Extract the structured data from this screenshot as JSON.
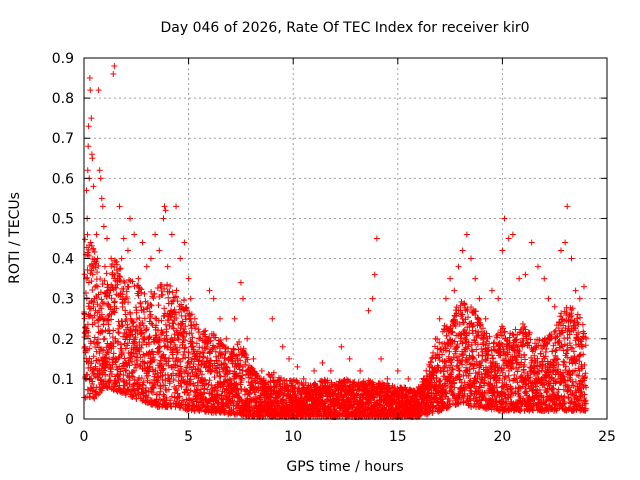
{
  "chart_data": {
    "type": "scatter",
    "title": "Day 046 of 2026, Rate Of TEC Index for receiver kir0",
    "xlabel": "GPS time / hours",
    "ylabel": "ROTI / TECUs",
    "xlim": [
      0,
      25
    ],
    "ylim": [
      0,
      0.9
    ],
    "x_ticks": [
      0,
      5,
      10,
      15,
      20,
      25
    ],
    "x_tick_labels": [
      "0",
      "5",
      "10",
      "15",
      "20",
      "25"
    ],
    "y_ticks": [
      0,
      0.1,
      0.2,
      0.3,
      0.4,
      0.5,
      0.6,
      0.7,
      0.8,
      0.9
    ],
    "y_tick_labels": [
      "0",
      "0.1",
      "0.2",
      "0.3",
      "0.4",
      "0.5",
      "0.6",
      "0.7",
      "0.8",
      "0.9"
    ],
    "grid": true,
    "marker": "+",
    "marker_color": "#ff0000",
    "series": [
      {
        "name": "kir0",
        "points": [
          [
            0.05,
            0.18
          ],
          [
            0.1,
            0.35
          ],
          [
            0.12,
            0.57
          ],
          [
            0.15,
            0.5
          ],
          [
            0.18,
            0.62
          ],
          [
            0.2,
            0.68
          ],
          [
            0.22,
            0.73
          ],
          [
            0.25,
            0.6
          ],
          [
            0.28,
            0.85
          ],
          [
            0.3,
            0.82
          ],
          [
            0.32,
            0.44
          ],
          [
            0.35,
            0.75
          ],
          [
            0.38,
            0.66
          ],
          [
            0.4,
            0.65
          ],
          [
            0.42,
            0.36
          ],
          [
            0.45,
            0.58
          ],
          [
            0.5,
            0.3
          ],
          [
            0.55,
            0.27
          ],
          [
            0.6,
            0.46
          ],
          [
            0.65,
            0.4
          ],
          [
            0.7,
            0.82
          ],
          [
            0.75,
            0.62
          ],
          [
            0.8,
            0.6
          ],
          [
            0.85,
            0.55
          ],
          [
            0.9,
            0.53
          ],
          [
            0.95,
            0.48
          ],
          [
            1.0,
            0.38
          ],
          [
            1.05,
            0.25
          ],
          [
            1.1,
            0.45
          ],
          [
            1.15,
            0.32
          ],
          [
            1.2,
            0.15
          ],
          [
            1.3,
            0.4
          ],
          [
            1.4,
            0.86
          ],
          [
            1.45,
            0.88
          ],
          [
            1.5,
            0.2
          ],
          [
            1.6,
            0.35
          ],
          [
            1.7,
            0.53
          ],
          [
            1.8,
            0.4
          ],
          [
            1.9,
            0.45
          ],
          [
            2.0,
            0.3
          ],
          [
            2.1,
            0.42
          ],
          [
            2.2,
            0.5
          ],
          [
            2.4,
            0.46
          ],
          [
            2.6,
            0.35
          ],
          [
            2.8,
            0.44
          ],
          [
            3.0,
            0.38
          ],
          [
            3.2,
            0.4
          ],
          [
            3.4,
            0.46
          ],
          [
            3.6,
            0.42
          ],
          [
            3.8,
            0.5
          ],
          [
            3.85,
            0.53
          ],
          [
            3.9,
            0.52
          ],
          [
            4.0,
            0.38
          ],
          [
            4.2,
            0.46
          ],
          [
            4.4,
            0.53
          ],
          [
            4.6,
            0.4
          ],
          [
            4.8,
            0.44
          ],
          [
            5.0,
            0.35
          ],
          [
            5.1,
            0.3
          ],
          [
            5.3,
            0.25
          ],
          [
            5.5,
            0.2
          ],
          [
            5.8,
            0.22
          ],
          [
            6.0,
            0.32
          ],
          [
            6.2,
            0.3
          ],
          [
            6.5,
            0.25
          ],
          [
            6.8,
            0.2
          ],
          [
            7.2,
            0.25
          ],
          [
            7.5,
            0.34
          ],
          [
            7.6,
            0.3
          ],
          [
            7.8,
            0.2
          ],
          [
            8.1,
            0.15
          ],
          [
            8.5,
            0.12
          ],
          [
            9.0,
            0.25
          ],
          [
            9.5,
            0.18
          ],
          [
            9.8,
            0.15
          ],
          [
            10.2,
            0.13
          ],
          [
            10.5,
            0.1
          ],
          [
            11.0,
            0.12
          ],
          [
            11.4,
            0.14
          ],
          [
            11.8,
            0.12
          ],
          [
            12.3,
            0.18
          ],
          [
            12.7,
            0.15
          ],
          [
            13.2,
            0.12
          ],
          [
            13.6,
            0.27
          ],
          [
            13.8,
            0.3
          ],
          [
            13.9,
            0.36
          ],
          [
            14.0,
            0.45
          ],
          [
            14.2,
            0.15
          ],
          [
            14.5,
            0.1
          ],
          [
            15.0,
            0.12
          ],
          [
            15.5,
            0.1
          ],
          [
            16.0,
            0.08
          ],
          [
            16.5,
            0.1
          ],
          [
            16.8,
            0.2
          ],
          [
            17.0,
            0.25
          ],
          [
            17.3,
            0.3
          ],
          [
            17.5,
            0.35
          ],
          [
            17.7,
            0.32
          ],
          [
            17.9,
            0.38
          ],
          [
            18.1,
            0.42
          ],
          [
            18.3,
            0.46
          ],
          [
            18.5,
            0.4
          ],
          [
            18.7,
            0.35
          ],
          [
            18.9,
            0.3
          ],
          [
            19.2,
            0.25
          ],
          [
            19.5,
            0.32
          ],
          [
            19.8,
            0.3
          ],
          [
            20.0,
            0.42
          ],
          [
            20.1,
            0.5
          ],
          [
            20.3,
            0.45
          ],
          [
            20.5,
            0.46
          ],
          [
            20.8,
            0.35
          ],
          [
            21.1,
            0.36
          ],
          [
            21.4,
            0.44
          ],
          [
            21.7,
            0.38
          ],
          [
            22.0,
            0.35
          ],
          [
            22.2,
            0.3
          ],
          [
            22.5,
            0.28
          ],
          [
            22.8,
            0.42
          ],
          [
            23.0,
            0.44
          ],
          [
            23.1,
            0.53
          ],
          [
            23.3,
            0.4
          ],
          [
            23.5,
            0.32
          ],
          [
            23.7,
            0.3
          ],
          [
            23.9,
            0.33
          ],
          [
            24.0,
            0.2
          ]
        ],
        "band_envelope": [
          [
            0.0,
            0.05,
            0.48
          ],
          [
            0.5,
            0.05,
            0.42
          ],
          [
            1.0,
            0.08,
            0.36
          ],
          [
            1.5,
            0.07,
            0.4
          ],
          [
            2.0,
            0.06,
            0.35
          ],
          [
            2.5,
            0.05,
            0.34
          ],
          [
            3.0,
            0.04,
            0.32
          ],
          [
            3.5,
            0.03,
            0.33
          ],
          [
            4.0,
            0.03,
            0.35
          ],
          [
            4.5,
            0.03,
            0.32
          ],
          [
            5.0,
            0.02,
            0.28
          ],
          [
            5.5,
            0.02,
            0.22
          ],
          [
            6.0,
            0.015,
            0.22
          ],
          [
            6.5,
            0.015,
            0.2
          ],
          [
            7.0,
            0.01,
            0.17
          ],
          [
            7.5,
            0.01,
            0.2
          ],
          [
            8.0,
            0.005,
            0.13
          ],
          [
            8.5,
            0.005,
            0.1
          ],
          [
            9.0,
            0.005,
            0.12
          ],
          [
            9.5,
            0.005,
            0.1
          ],
          [
            10.0,
            0.005,
            0.1
          ],
          [
            10.5,
            0.005,
            0.09
          ],
          [
            11.0,
            0.005,
            0.09
          ],
          [
            11.5,
            0.005,
            0.1
          ],
          [
            12.0,
            0.005,
            0.09
          ],
          [
            12.5,
            0.005,
            0.1
          ],
          [
            13.0,
            0.005,
            0.09
          ],
          [
            13.5,
            0.005,
            0.1
          ],
          [
            14.0,
            0.005,
            0.09
          ],
          [
            14.5,
            0.005,
            0.09
          ],
          [
            15.0,
            0.005,
            0.08
          ],
          [
            15.5,
            0.005,
            0.08
          ],
          [
            16.0,
            0.005,
            0.08
          ],
          [
            16.5,
            0.01,
            0.14
          ],
          [
            17.0,
            0.02,
            0.22
          ],
          [
            17.5,
            0.03,
            0.25
          ],
          [
            18.0,
            0.04,
            0.3
          ],
          [
            18.5,
            0.03,
            0.3
          ],
          [
            19.0,
            0.03,
            0.24
          ],
          [
            19.5,
            0.02,
            0.2
          ],
          [
            20.0,
            0.02,
            0.24
          ],
          [
            20.5,
            0.02,
            0.22
          ],
          [
            21.0,
            0.02,
            0.24
          ],
          [
            21.5,
            0.02,
            0.2
          ],
          [
            22.0,
            0.02,
            0.2
          ],
          [
            22.5,
            0.02,
            0.22
          ],
          [
            23.0,
            0.02,
            0.3
          ],
          [
            23.5,
            0.02,
            0.28
          ],
          [
            24.0,
            0.02,
            0.22
          ]
        ],
        "band_point_count": 5200
      }
    ]
  }
}
